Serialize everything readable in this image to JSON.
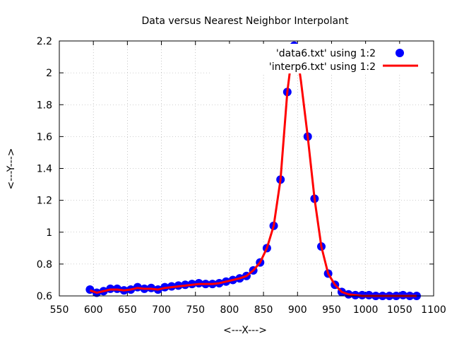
{
  "chart_data": {
    "type": "line",
    "title": "Data versus Nearest Neighbor Interpolant",
    "xlabel": "<---X--->",
    "ylabel": "<---Y--->",
    "xlim": [
      550,
      1100
    ],
    "ylim": [
      0.6,
      2.2
    ],
    "x_ticks": [
      "550",
      "600",
      "650",
      "700",
      "750",
      "800",
      "850",
      "900",
      "950",
      "1000",
      "1050",
      "1100"
    ],
    "y_ticks": [
      "0.6",
      "0.8",
      "1",
      "1.2",
      "1.4",
      "1.6",
      "1.8",
      "2",
      "2.2"
    ],
    "grid": true,
    "legend_position": "top-right",
    "series": [
      {
        "name": "'data6.txt' using 1:2",
        "style": "points",
        "color": "#0000ff",
        "x": [
          595,
          605,
          615,
          625,
          635,
          645,
          655,
          665,
          675,
          685,
          695,
          705,
          715,
          725,
          735,
          745,
          755,
          765,
          775,
          785,
          795,
          805,
          815,
          825,
          835,
          845,
          855,
          865,
          875,
          885,
          895,
          905,
          915,
          925,
          935,
          945,
          955,
          965,
          975,
          985,
          995,
          1005,
          1015,
          1025,
          1035,
          1045,
          1055,
          1065,
          1075
        ],
        "y": [
          0.64,
          0.62,
          0.63,
          0.645,
          0.645,
          0.635,
          0.64,
          0.655,
          0.645,
          0.65,
          0.64,
          0.655,
          0.66,
          0.665,
          0.67,
          0.675,
          0.68,
          0.675,
          0.675,
          0.68,
          0.69,
          0.7,
          0.71,
          0.725,
          0.76,
          0.81,
          0.9,
          1.04,
          1.33,
          1.88,
          2.17,
          2.08,
          1.6,
          1.21,
          0.91,
          0.74,
          0.67,
          0.625,
          0.61,
          0.605,
          0.605,
          0.605,
          0.6,
          0.6,
          0.6,
          0.6,
          0.605,
          0.6,
          0.6
        ]
      },
      {
        "name": "'interp6.txt' using 1:2",
        "style": "lines",
        "color": "#ff0000",
        "x": [
          595,
          605,
          615,
          625,
          635,
          645,
          655,
          665,
          675,
          685,
          695,
          705,
          715,
          725,
          735,
          745,
          755,
          765,
          775,
          785,
          795,
          805,
          815,
          825,
          835,
          845,
          855,
          865,
          875,
          885,
          890,
          895,
          900,
          905,
          915,
          925,
          935,
          945,
          955,
          965,
          975,
          985,
          995,
          1005,
          1015,
          1025,
          1035,
          1045,
          1055,
          1065,
          1075
        ],
        "y": [
          0.635,
          0.62,
          0.63,
          0.64,
          0.64,
          0.635,
          0.64,
          0.65,
          0.645,
          0.645,
          0.64,
          0.65,
          0.655,
          0.66,
          0.665,
          0.67,
          0.675,
          0.675,
          0.675,
          0.68,
          0.69,
          0.7,
          0.71,
          0.725,
          0.76,
          0.81,
          0.9,
          1.04,
          1.33,
          1.88,
          2.05,
          2.14,
          2.1,
          1.95,
          1.6,
          1.21,
          0.91,
          0.74,
          0.67,
          0.625,
          0.61,
          0.605,
          0.6,
          0.6,
          0.6,
          0.6,
          0.6,
          0.6,
          0.6,
          0.6,
          0.6
        ]
      }
    ]
  }
}
